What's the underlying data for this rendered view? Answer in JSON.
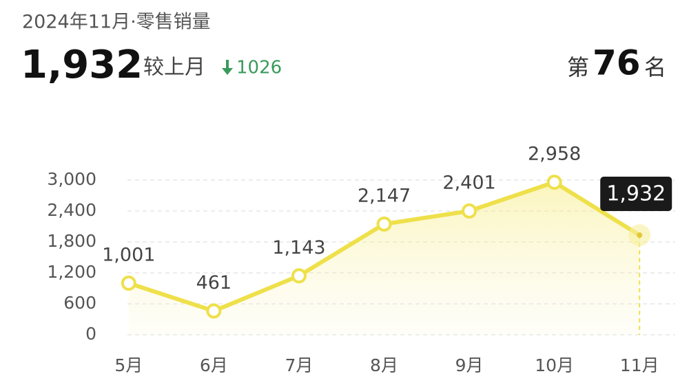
{
  "chart_data": {
    "type": "line",
    "title": "2024年11月·零售销量",
    "headline": "1,932",
    "change_label": "较上月",
    "change": 1026,
    "rank_prefix": "第",
    "rank": 76,
    "rank_suffix": "名",
    "categories": [
      "5月",
      "6月",
      "7月",
      "8月",
      "9月",
      "10月",
      "11月"
    ],
    "values": [
      1001,
      461,
      1143,
      2147,
      2401,
      2958,
      1932
    ],
    "value_labels": [
      "1,001",
      "461",
      "1,143",
      "2,147",
      "2,401",
      "2,958",
      "1,932"
    ],
    "color": "#eee04a",
    "ylim": [
      0,
      3000
    ],
    "yticks": [
      0,
      600,
      {
        "value": 1200,
        "label": "1,200"
      },
      {
        "value": 1800,
        "label": "1,800"
      },
      {
        "value": 2400,
        "label": "2,400"
      },
      {
        "value": 3000,
        "label": "3,000"
      }
    ],
    "grid": true
  }
}
